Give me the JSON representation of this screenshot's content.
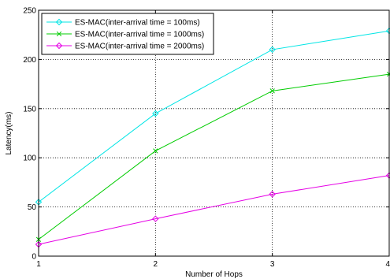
{
  "chart_data": {
    "type": "line",
    "title": "",
    "xlabel": "Number of Hops",
    "ylabel": "Latency(ms)",
    "x": [
      1,
      2,
      3,
      4
    ],
    "xlim": [
      1,
      4
    ],
    "ylim": [
      0,
      250
    ],
    "xticks": [
      "1",
      "2",
      "3",
      "4"
    ],
    "yticks": [
      "0",
      "50",
      "100",
      "150",
      "200",
      "250"
    ],
    "grid": true,
    "legend_position": "top-left",
    "series": [
      {
        "name": "ES-MAC(inter-arrival time = 100ms)",
        "values": [
          55,
          145,
          210,
          229
        ],
        "color": "#00e5e5",
        "marker": "diamond"
      },
      {
        "name": "ES-MAC(inter-arrival time = 1000ms)",
        "values": [
          17,
          107,
          168,
          185
        ],
        "color": "#00cc00",
        "marker": "x"
      },
      {
        "name": "ES-MAC(inter-arrival time = 2000ms)",
        "values": [
          12,
          38,
          63,
          82
        ],
        "color": "#e500e5",
        "marker": "diamond"
      }
    ]
  }
}
